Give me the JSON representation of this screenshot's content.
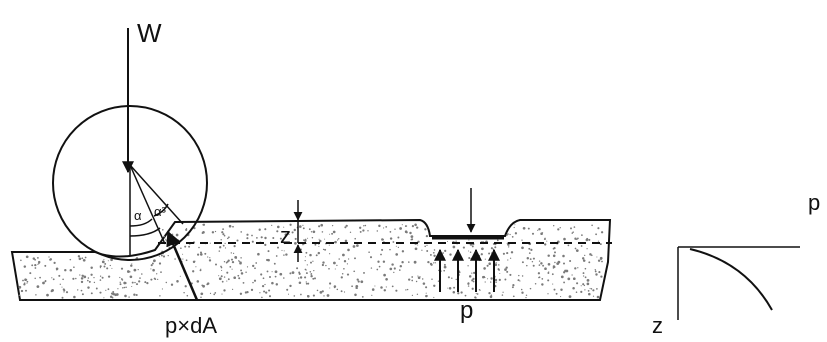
{
  "labels": {
    "load": "W",
    "alpha_left": "α",
    "alpha_right": "α³",
    "sinkage": "z",
    "reaction": "p×dA",
    "plate_pressure": "p",
    "graph_pressure_axis": "p",
    "graph_depth_axis": "z"
  },
  "colors": {
    "ink": "#111111",
    "soil_speckle": "#7a7a7a",
    "background": "#ffffff"
  }
}
